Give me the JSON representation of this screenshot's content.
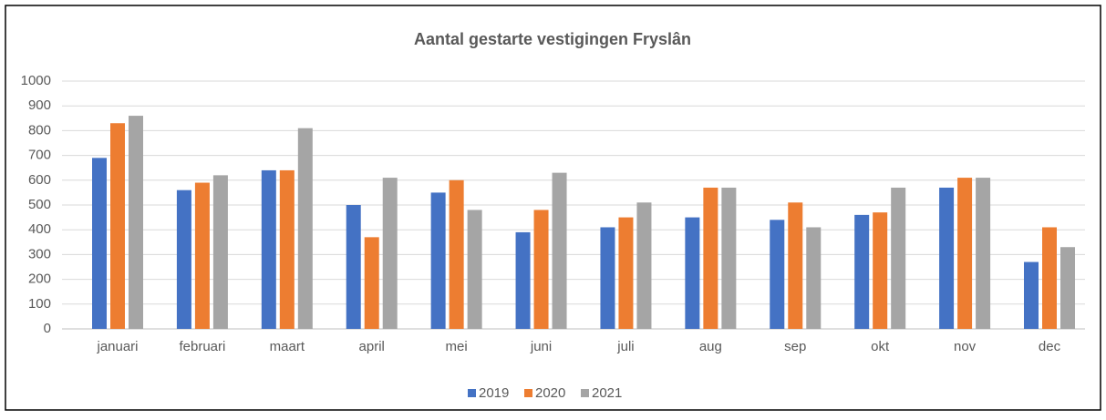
{
  "chart_data": {
    "type": "bar",
    "title": "Aantal gestarte vestigingen Fryslân",
    "categories": [
      "januari",
      "februari",
      "maart",
      "april",
      "mei",
      "juni",
      "juli",
      "aug",
      "sep",
      "okt",
      "nov",
      "dec"
    ],
    "series": [
      {
        "name": "2019",
        "color": "#4472c4",
        "values": [
          690,
          560,
          640,
          500,
          550,
          390,
          410,
          450,
          440,
          460,
          570,
          270
        ]
      },
      {
        "name": "2020",
        "color": "#ed7d31",
        "values": [
          830,
          590,
          640,
          370,
          600,
          480,
          450,
          570,
          510,
          470,
          610,
          410
        ]
      },
      {
        "name": "2021",
        "color": "#a5a5a5",
        "values": [
          860,
          620,
          810,
          610,
          480,
          630,
          510,
          570,
          410,
          570,
          610,
          330
        ]
      }
    ],
    "ylim": [
      0,
      1000
    ],
    "yticks": [
      0,
      100,
      200,
      300,
      400,
      500,
      600,
      700,
      800,
      900,
      1000
    ],
    "grid": true,
    "legend": "bottom"
  }
}
